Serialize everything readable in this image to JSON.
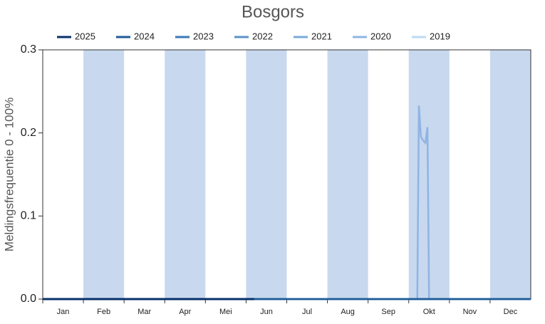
{
  "chart_data": {
    "type": "line",
    "title": "Bosgors",
    "ylabel": "Meldingsfrequentie 0 - 100%",
    "categories": [
      "Jan",
      "Feb",
      "Mar",
      "Apr",
      "Mei",
      "Jun",
      "Jul",
      "Aug",
      "Sep",
      "Okt",
      "Nov",
      "Dec"
    ],
    "band_color": "#c8d8ee",
    "xlim": [
      0,
      12
    ],
    "ylim": [
      0,
      0.3
    ],
    "yticks": [
      {
        "value": 0,
        "label": "0.0"
      },
      0.1,
      0.2,
      0.3
    ],
    "series": [
      {
        "name": "2025",
        "color": "#08306b",
        "x": [
          0,
          5.2
        ],
        "values": [
          0,
          0
        ]
      },
      {
        "name": "2024",
        "color": "#1f5a96",
        "x": [
          0,
          12
        ],
        "values": [
          0,
          0
        ]
      },
      {
        "name": "2023",
        "color": "#3a78b4",
        "x": [
          0,
          12
        ],
        "values": [
          0,
          0
        ]
      },
      {
        "name": "2022",
        "color": "#5a93c8",
        "x": [
          0,
          12
        ],
        "values": [
          0,
          0
        ]
      },
      {
        "name": "2021",
        "color": "#78abd8",
        "x": [
          0,
          12
        ],
        "values": [
          0,
          0
        ]
      },
      {
        "name": "2020",
        "color": "#8fb4e4",
        "x": [
          0,
          9.21,
          9.25,
          9.3,
          9.37,
          9.41,
          9.46,
          9.5,
          12
        ],
        "values": [
          0,
          0,
          0.233,
          0.195,
          0.19,
          0.188,
          0.207,
          0,
          0
        ]
      },
      {
        "name": "2019",
        "color": "#bcdaf2",
        "x": [
          0,
          12
        ],
        "values": [
          0,
          0
        ]
      }
    ]
  }
}
